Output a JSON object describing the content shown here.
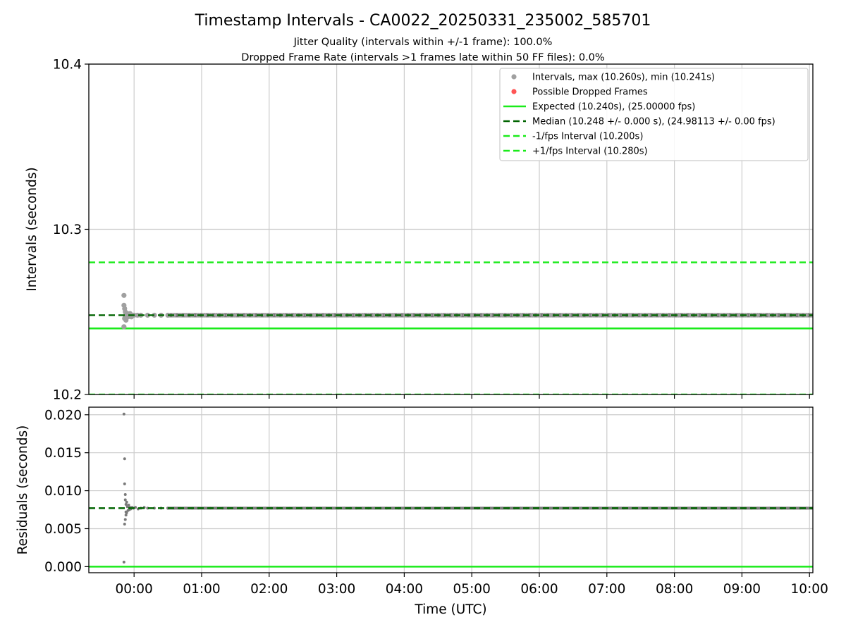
{
  "title": "Timestamp Intervals - CA0022_20250331_235002_585701",
  "subtitle_1": "Jitter Quality (intervals within +/-1 frame): 100.0%",
  "subtitle_2": "Dropped Frame Rate (intervals >1 frames late within 50 FF files): 0.0%",
  "colors": {
    "points": "#a0a0a0",
    "points_dark": "#7a7a7a",
    "dropped": "#ff5555",
    "expected": "#1aeb1a",
    "median": "#006400",
    "fps_bounds": "#1aeb1a",
    "grid": "#cccccc"
  },
  "chart_data": [
    {
      "type": "scatter",
      "panel": "top",
      "ylabel": "Intervals (seconds)",
      "ylim": [
        10.2,
        10.4
      ],
      "yticks": [
        "10.2",
        "10.3",
        "10.4"
      ],
      "ytick_values": [
        10.2,
        10.3,
        10.4
      ],
      "xlim_hours": [
        -0.67,
        10.05
      ],
      "grid": true,
      "legend_position": "top-right",
      "legend": [
        {
          "label": "Intervals, max (10.260s), min (10.241s)",
          "kind": "dot-gray"
        },
        {
          "label": "Possible Dropped Frames",
          "kind": "dot-red"
        },
        {
          "label": "Expected (10.240s), (25.00000 fps)",
          "kind": "line-solid"
        },
        {
          "label": "Median (10.248 +/- 0.000 s), (24.98113 +/- 0.00 fps)",
          "kind": "line-median"
        },
        {
          "label": "-1/fps Interval (10.200s)",
          "kind": "line-dashed"
        },
        {
          "label": "+1/fps Interval (10.280s)",
          "kind": "line-dashed"
        }
      ],
      "reference_lines": {
        "expected": 10.24,
        "median": 10.248,
        "minus_fps": 10.2,
        "plus_fps": 10.28
      },
      "series": [
        {
          "name": "Intervals, max (10.260s), min (10.241s)",
          "x_hours": [
            -0.15,
            -0.15,
            -0.15,
            -0.14,
            -0.14,
            -0.13,
            -0.13,
            -0.12,
            -0.12,
            -0.11,
            -0.1,
            -0.09,
            -0.08,
            -0.06,
            -0.04,
            -0.02,
            0.0,
            0.05,
            0.1,
            0.2,
            0.3,
            0.4,
            0.5
          ],
          "y": [
            10.26,
            10.254,
            10.241,
            10.252,
            10.246,
            10.25,
            10.247,
            10.249,
            10.245,
            10.248,
            10.249,
            10.247,
            10.248,
            10.249,
            10.247,
            10.248,
            10.248,
            10.248,
            10.248,
            10.248,
            10.248,
            10.248,
            10.248
          ]
        }
      ],
      "trend": {
        "from_hours": 0.5,
        "to_hours": 10.05,
        "y": 10.248
      }
    },
    {
      "type": "scatter",
      "panel": "bottom",
      "ylabel": "Residuals (seconds)",
      "xlabel": "Time (UTC)",
      "ylim": [
        -0.0008,
        0.021
      ],
      "yticks": [
        "0.000",
        "0.005",
        "0.010",
        "0.015",
        "0.020"
      ],
      "ytick_values": [
        0.0,
        0.005,
        0.01,
        0.015,
        0.02
      ],
      "xticks": [
        "00:00",
        "01:00",
        "02:00",
        "03:00",
        "04:00",
        "05:00",
        "06:00",
        "07:00",
        "08:00",
        "09:00",
        "10:00"
      ],
      "xtick_values": [
        0,
        1,
        2,
        3,
        4,
        5,
        6,
        7,
        8,
        9,
        10
      ],
      "xlim_hours": [
        -0.67,
        10.05
      ],
      "grid": true,
      "reference_lines": {
        "expected": 0.0,
        "median": 0.0077
      },
      "series": [
        {
          "name": "Residuals",
          "x_hours": [
            -0.15,
            -0.15,
            -0.14,
            -0.14,
            -0.14,
            -0.13,
            -0.13,
            -0.13,
            -0.12,
            -0.12,
            -0.12,
            -0.11,
            -0.11,
            -0.1,
            -0.09,
            -0.08,
            -0.07,
            -0.06,
            -0.05,
            -0.03,
            -0.01,
            0.02,
            0.06,
            0.1,
            0.15,
            0.2,
            0.3,
            0.4,
            0.5
          ],
          "y": [
            0.0201,
            0.0006,
            0.0142,
            0.0109,
            0.0056,
            0.0095,
            0.0062,
            0.0088,
            0.0068,
            0.0082,
            0.0072,
            0.0085,
            0.0071,
            0.0079,
            0.0074,
            0.0081,
            0.0075,
            0.0078,
            0.0076,
            0.0078,
            0.0077,
            0.0078,
            0.0076,
            0.0077,
            0.0078,
            0.0077,
            0.0077,
            0.0077,
            0.0077
          ]
        }
      ],
      "trend": {
        "from_hours": 0.5,
        "to_hours": 10.05,
        "y": 0.0077
      }
    }
  ]
}
